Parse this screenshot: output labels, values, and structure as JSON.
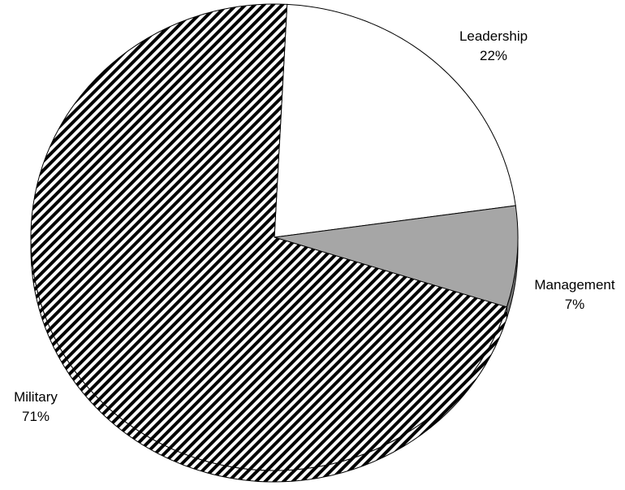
{
  "chart_data": {
    "type": "pie",
    "style": "3d-tilted",
    "title": "",
    "legend": "none",
    "categories": [
      "Leadership",
      "Management",
      "Military"
    ],
    "values": [
      22,
      7,
      71
    ],
    "labels": [
      "22%",
      "7%",
      "71%"
    ],
    "colors": [
      "#ffffff",
      "#a6a6a6",
      "hatched-diagonal"
    ],
    "edge_color": "#000000"
  }
}
